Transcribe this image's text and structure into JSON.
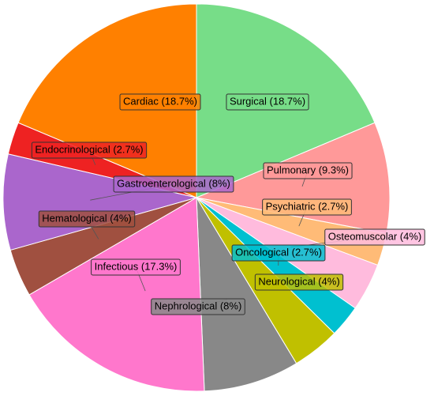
{
  "chart_data": {
    "type": "pie",
    "values": [
      18.7,
      9.3,
      2.7,
      4,
      2.7,
      4,
      8,
      17.3,
      4,
      8,
      2.7,
      18.7
    ],
    "value_labels": [
      "Surgical (18.7%)",
      "Pulmonary (9.3%)",
      "Psychiatric (2.7%)",
      "Osteomuscolar (4%)",
      "Oncological (2.7%)",
      "Neurological (4%)",
      "Nephrological (8%)",
      "Infectious (17.3%)",
      "Hematological (4%)",
      "Gastroenterological (8%)",
      "Endocrinological (2.7%)",
      "Cardiac (18.7%)"
    ],
    "colors": [
      "#77dd88",
      "#ff9999",
      "#ffbb77",
      "#ffbbdd",
      "#00c0d0",
      "#c0c000",
      "#888888",
      "#ff77cc",
      "#a05040",
      "#aa66cc",
      "#ee2222",
      "#ff8000"
    ]
  }
}
